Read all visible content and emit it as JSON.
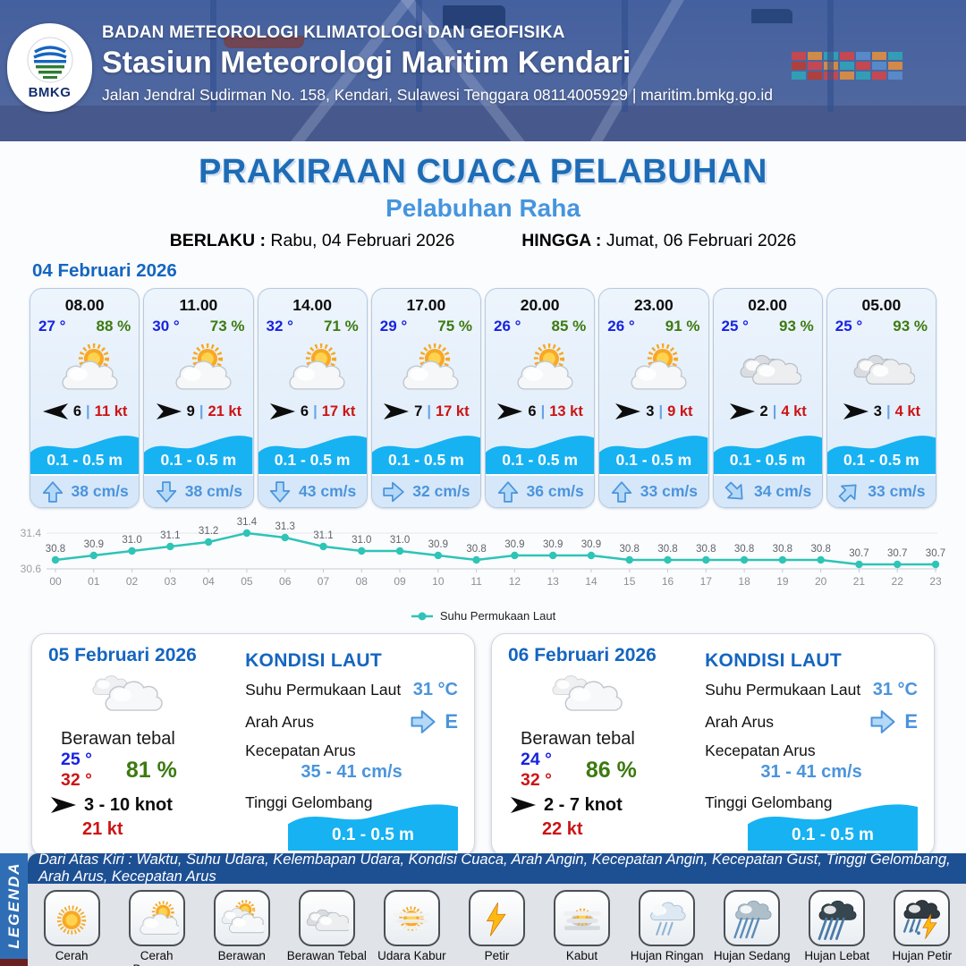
{
  "header": {
    "org": "BADAN METEOROLOGI KLIMATOLOGI DAN GEOFISIKA",
    "station": "Stasiun Meteorologi Maritim Kendari",
    "address": "Jalan Jendral Sudirman No. 158, Kendari, Sulawesi Tenggara  08114005929 | maritim.bmkg.go.id",
    "logo_text": "BMKG"
  },
  "title": {
    "main": "PRAKIRAAN CUACA PELABUHAN",
    "port": "Pelabuhan Raha",
    "berlaku_label": "BERLAKU :",
    "berlaku_value": "Rabu, 04 Februari 2026",
    "hingga_label": "HINGGA :",
    "hingga_value": "Jumat, 06 Februari 2026"
  },
  "day1": {
    "date": "04 Februari 2026",
    "cards": [
      {
        "time": "08.00",
        "temp": "27 °",
        "humidity": "88 %",
        "icon": "cerah-berawan",
        "wind_dir_deg": 180,
        "wind_speed": "6",
        "gust": "11 kt",
        "wave": "0.1 - 0.5 m",
        "current": "38 cm/s",
        "current_dir_deg": 0
      },
      {
        "time": "11.00",
        "temp": "30 °",
        "humidity": "73 %",
        "icon": "cerah-berawan",
        "wind_dir_deg": 0,
        "wind_speed": "9",
        "gust": "21 kt",
        "wave": "0.1 - 0.5 m",
        "current": "38 cm/s",
        "current_dir_deg": 180
      },
      {
        "time": "14.00",
        "temp": "32 °",
        "humidity": "71 %",
        "icon": "cerah-berawan",
        "wind_dir_deg": 0,
        "wind_speed": "6",
        "gust": "17 kt",
        "wave": "0.1 - 0.5 m",
        "current": "43 cm/s",
        "current_dir_deg": 180
      },
      {
        "time": "17.00",
        "temp": "29 °",
        "humidity": "75 %",
        "icon": "cerah-berawan",
        "wind_dir_deg": 0,
        "wind_speed": "7",
        "gust": "17 kt",
        "wave": "0.1 - 0.5 m",
        "current": "32 cm/s",
        "current_dir_deg": 90
      },
      {
        "time": "20.00",
        "temp": "26 °",
        "humidity": "85 %",
        "icon": "cerah-berawan",
        "wind_dir_deg": 0,
        "wind_speed": "6",
        "gust": "13 kt",
        "wave": "0.1 - 0.5 m",
        "current": "36 cm/s",
        "current_dir_deg": 0
      },
      {
        "time": "23.00",
        "temp": "26 °",
        "humidity": "91 %",
        "icon": "cerah-berawan",
        "wind_dir_deg": 0,
        "wind_speed": "3",
        "gust": "9 kt",
        "wave": "0.1 - 0.5 m",
        "current": "33 cm/s",
        "current_dir_deg": 0
      },
      {
        "time": "02.00",
        "temp": "25 °",
        "humidity": "93 %",
        "icon": "berawan",
        "wind_dir_deg": 0,
        "wind_speed": "2",
        "gust": "4 kt",
        "wave": "0.1 - 0.5 m",
        "current": "34 cm/s",
        "current_dir_deg": 135
      },
      {
        "time": "05.00",
        "temp": "25 °",
        "humidity": "93 %",
        "icon": "berawan",
        "wind_dir_deg": 0,
        "wind_speed": "3",
        "gust": "4 kt",
        "wave": "0.1 - 0.5 m",
        "current": "33 cm/s",
        "current_dir_deg": 45
      }
    ]
  },
  "chart_data": {
    "type": "line",
    "x": [
      "00",
      "01",
      "02",
      "03",
      "04",
      "05",
      "06",
      "07",
      "08",
      "09",
      "10",
      "11",
      "12",
      "13",
      "14",
      "15",
      "16",
      "17",
      "18",
      "19",
      "20",
      "21",
      "22",
      "23"
    ],
    "series": [
      {
        "name": "Suhu Permukaan Laut",
        "values": [
          30.8,
          30.9,
          31.0,
          31.1,
          31.2,
          31.4,
          31.3,
          31.1,
          31.0,
          31.0,
          30.9,
          30.8,
          30.9,
          30.9,
          30.9,
          30.8,
          30.8,
          30.8,
          30.8,
          30.8,
          30.8,
          30.7,
          30.7,
          30.7
        ]
      }
    ],
    "ylim": [
      30.6,
      31.4
    ],
    "yticks": [
      30.6,
      31.4
    ],
    "line_color": "#2ec4b6",
    "grid": true,
    "legend_position": "bottom"
  },
  "day_cards": [
    {
      "date": "05 Februari 2026",
      "condition": "Berawan tebal",
      "temp_min": "25 °",
      "temp_max": "32 °",
      "humidity": "81 %",
      "wind_range": "3  - 10 knot",
      "gust": "21 kt",
      "sea": {
        "heading": "KONDISI LAUT",
        "sst_label": "Suhu Permukaan Laut",
        "sst": "31 °C",
        "arah_label": "Arah Arus",
        "arah": "E",
        "kec_label": "Kecepatan Arus",
        "kec": "35 - 41 cm/s",
        "wave_label": "Tinggi Gelombang",
        "wave": "0.1 - 0.5 m"
      }
    },
    {
      "date": "06 Februari 2026",
      "condition": "Berawan tebal",
      "temp_min": "24 °",
      "temp_max": "32 °",
      "humidity": "86 %",
      "wind_range": "2  - 7 knot",
      "gust": "22 kt",
      "sea": {
        "heading": "KONDISI LAUT",
        "sst_label": "Suhu Permukaan Laut",
        "sst": "31 °C",
        "arah_label": "Arah Arus",
        "arah": "E",
        "kec_label": "Kecepatan Arus",
        "kec": "31 - 41 cm/s",
        "wave_label": "Tinggi Gelombang",
        "wave": "0.1 - 0.5 m"
      }
    }
  ],
  "legend": {
    "title": "LEGENDA",
    "info": "Dari Atas Kiri : Waktu, Suhu Udara, Kelembapan Udara, Kondisi Cuaca, Arah Angin, Kecepatan Angin, Kecepatan Gust, Tinggi Gelombang, Arah Arus, Kecepatan Arus",
    "items": [
      {
        "label": "Cerah",
        "icon": "cerah"
      },
      {
        "label": "Cerah Berawan",
        "icon": "cerah-berawan"
      },
      {
        "label": "Berawan",
        "icon": "berawan"
      },
      {
        "label": "Berawan Tebal",
        "icon": "berawan-tebal"
      },
      {
        "label": "Udara Kabur",
        "icon": "udara-kabur"
      },
      {
        "label": "Petir",
        "icon": "petir"
      },
      {
        "label": "Kabut",
        "icon": "kabut"
      },
      {
        "label": "Hujan Ringan",
        "icon": "hujan-ringan"
      },
      {
        "label": "Hujan Sedang",
        "icon": "hujan-sedang"
      },
      {
        "label": "Hujan Lebat",
        "icon": "hujan-lebat"
      },
      {
        "label": "Hujan Petir",
        "icon": "hujan-petir"
      }
    ]
  },
  "colors": {
    "title_blue": "#1e6cb5",
    "port_blue": "#4595de",
    "date_blue": "#1565c0",
    "temp_blue": "#1723e0",
    "humidity_green": "#3c7a10",
    "gust_red": "#cc1414",
    "current_blue": "#4b94dc",
    "wave_cyan": "#17b2f2",
    "chart_teal": "#2ec4b6"
  }
}
